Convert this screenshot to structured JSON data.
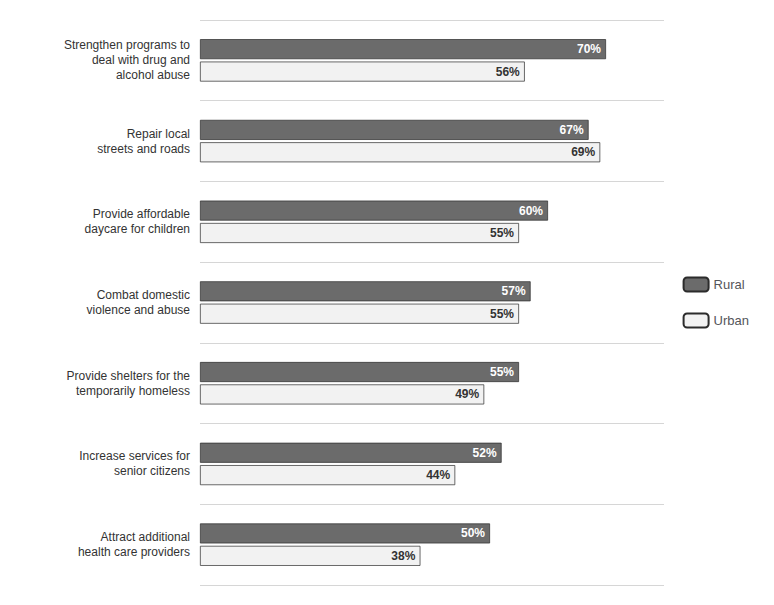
{
  "chart_data": {
    "type": "bar",
    "orientation": "horizontal",
    "categories": [
      "Strengthen programs to\ndeal with drug and\nalcohol abuse",
      "Repair local\nstreets and roads",
      "Provide affordable\ndaycare for children",
      "Combat domestic\nviolence and abuse",
      "Provide shelters for the\ntemporarily homeless",
      "Increase services for\nsenior citizens",
      "Attract additional\nhealth care providers"
    ],
    "series": [
      {
        "name": "Rural",
        "color": "#6b6b6b",
        "values": [
          70,
          67,
          60,
          57,
          55,
          52,
          50
        ],
        "value_labels": [
          "70%",
          "67%",
          "60%",
          "57%",
          "55%",
          "52%",
          "50%"
        ]
      },
      {
        "name": "Urban",
        "color": "#f2f2f2",
        "values": [
          56,
          69,
          55,
          55,
          49,
          44,
          38
        ],
        "value_labels": [
          "56%",
          "69%",
          "55%",
          "55%",
          "49%",
          "44%",
          "38%"
        ]
      }
    ],
    "xlim": [
      0,
      80
    ],
    "data_labels": true,
    "tick_labels": "y",
    "grid": true,
    "legend": "right"
  }
}
